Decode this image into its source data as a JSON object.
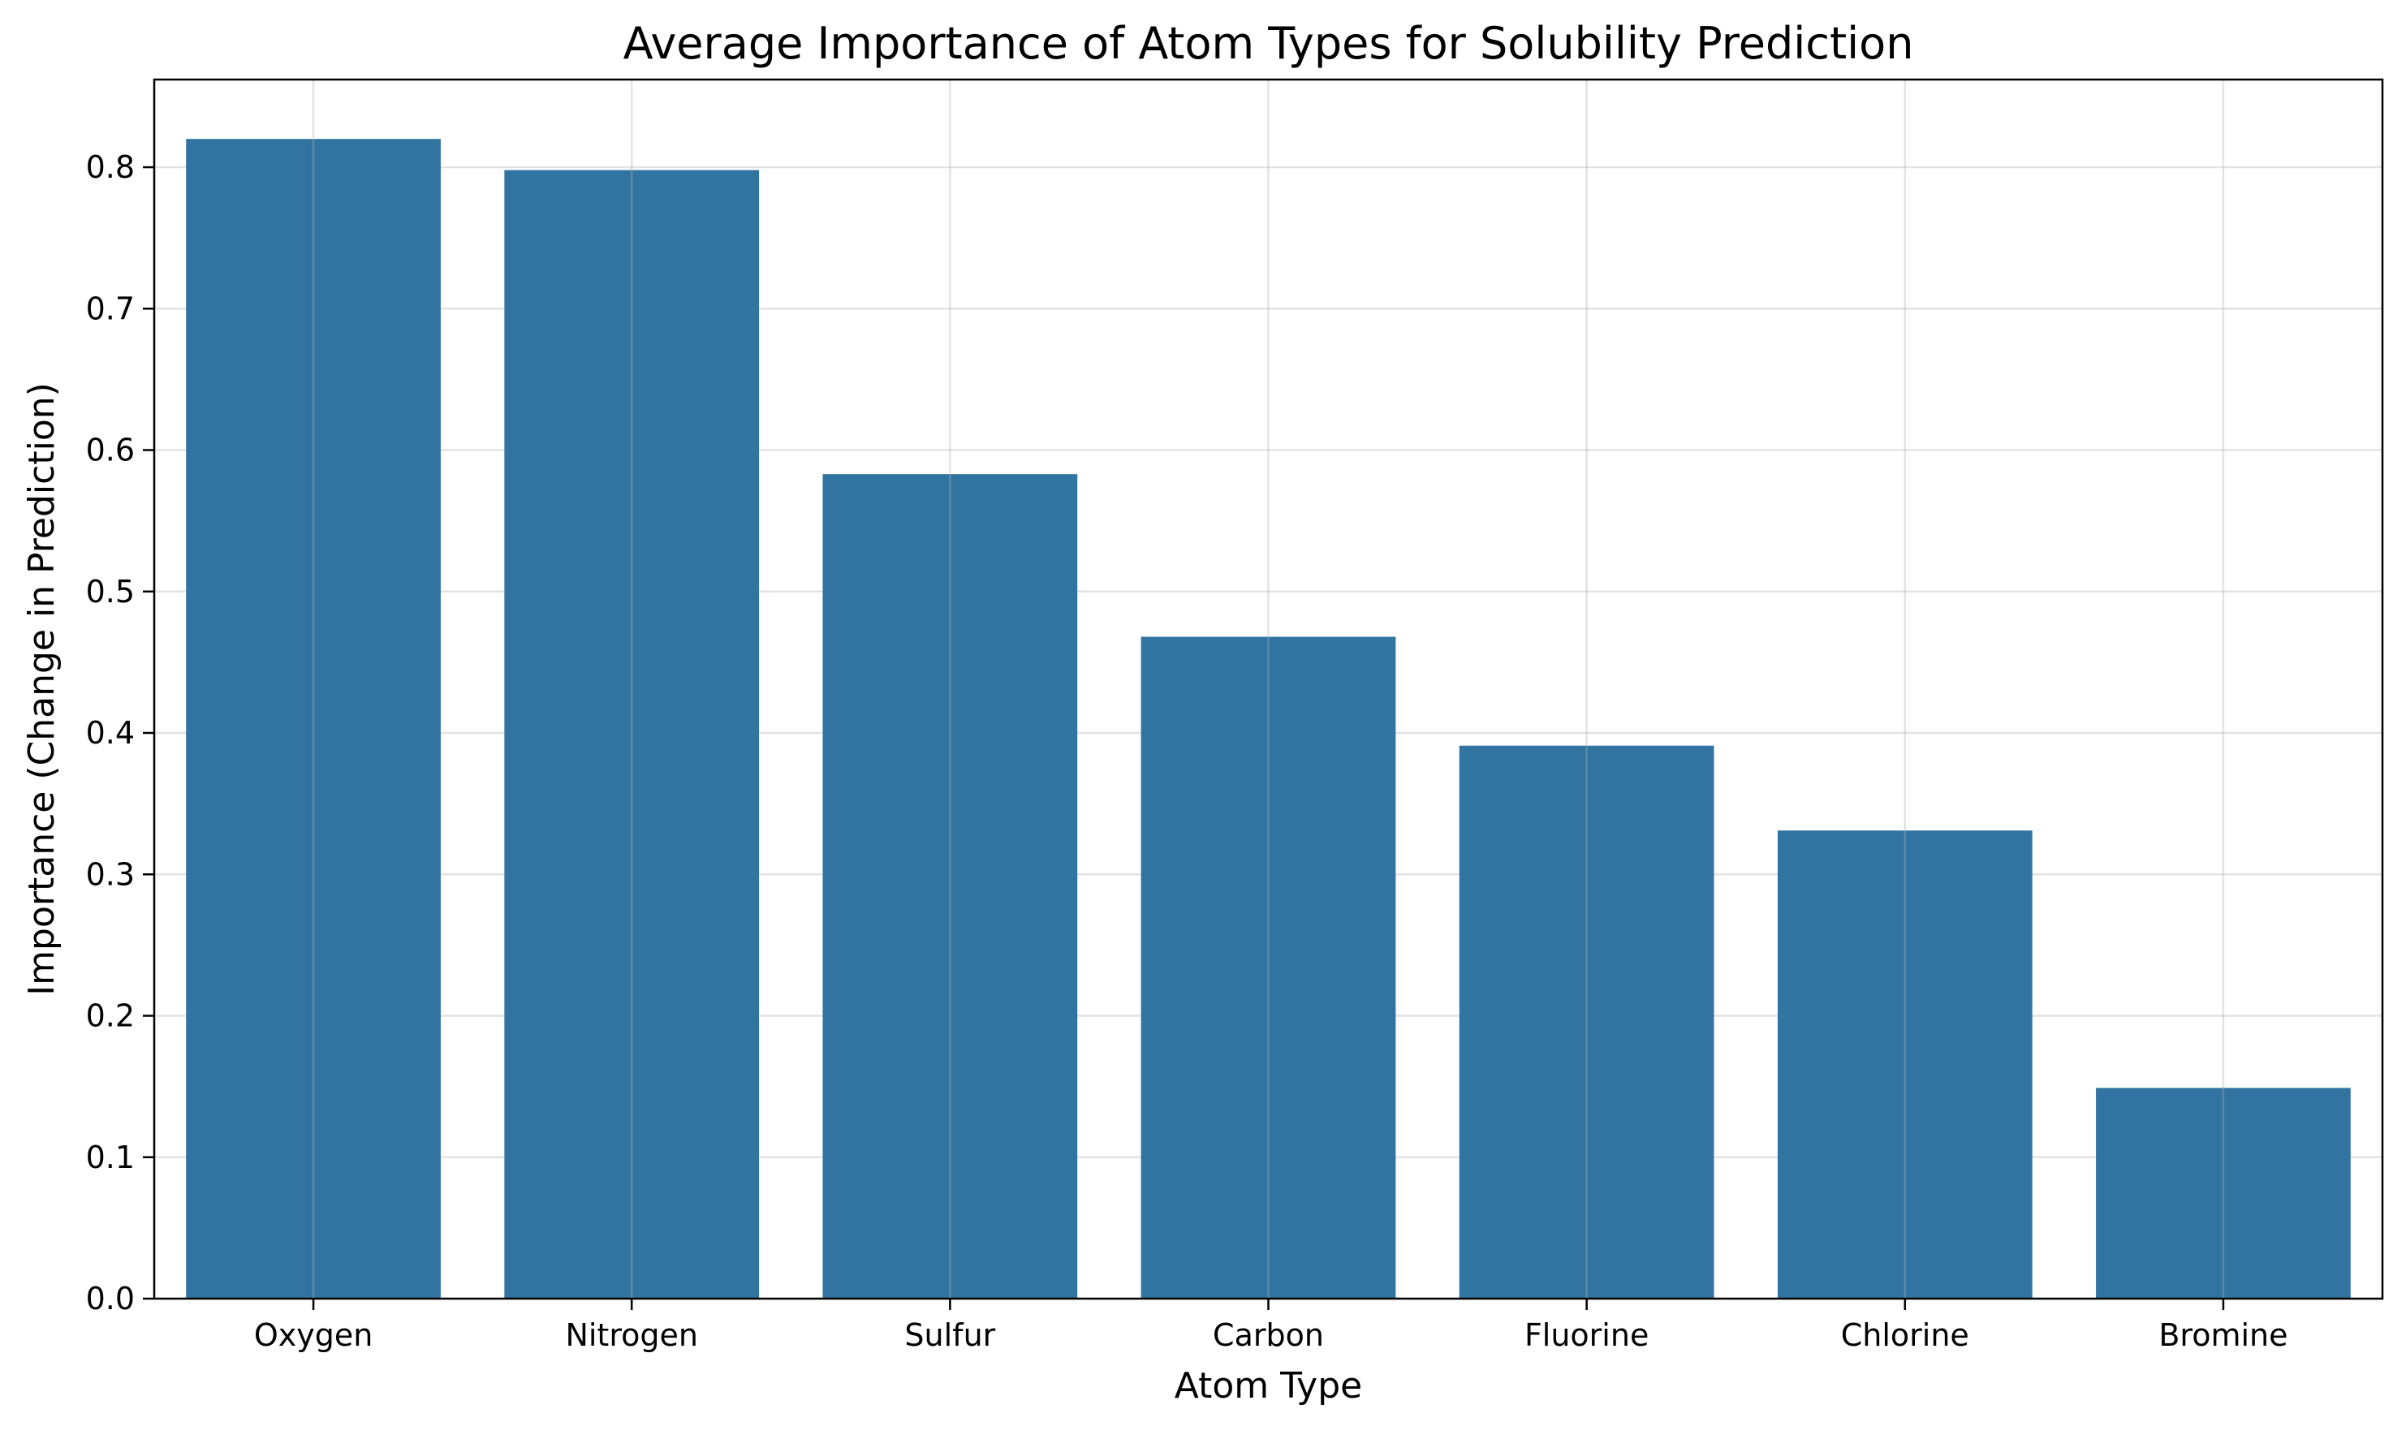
{
  "chart_data": {
    "type": "bar",
    "title": "Average Importance of Atom Types for Solubility Prediction",
    "xlabel": "Atom Type",
    "ylabel": "Importance (Change in Prediction)",
    "categories": [
      "Oxygen",
      "Nitrogen",
      "Sulfur",
      "Carbon",
      "Fluorine",
      "Chlorine",
      "Bromine"
    ],
    "values": [
      0.82,
      0.798,
      0.583,
      0.468,
      0.391,
      0.331,
      0.149
    ],
    "ylim": [
      0,
      0.862
    ],
    "yticks": [
      "0.0",
      "0.1",
      "0.2",
      "0.3",
      "0.4",
      "0.5",
      "0.6",
      "0.7",
      "0.8"
    ],
    "grid": true,
    "legend": "none",
    "colors": {
      "bar": "#3274a1",
      "grid": "#e3e3e3",
      "axis": "#000000"
    }
  }
}
